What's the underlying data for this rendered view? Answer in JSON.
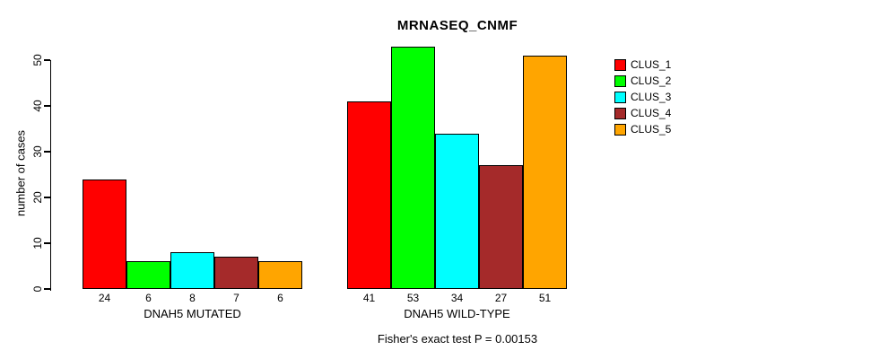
{
  "chart_data": {
    "type": "bar",
    "title": "MRNASEQ_CNMF",
    "ylabel": "number of cases",
    "xlabel": "",
    "ylim": [
      0,
      50
    ],
    "yticks": [
      0,
      10,
      20,
      30,
      40,
      50
    ],
    "grid": false,
    "legend_position": "right",
    "footer": "Fisher's exact test P = 0.00153",
    "categories": [
      "DNAH5 MUTATED",
      "DNAH5 WILD-TYPE"
    ],
    "series": [
      {
        "name": "CLUS_1",
        "color": "#FF0000",
        "values": [
          24,
          41
        ]
      },
      {
        "name": "CLUS_2",
        "color": "#00FF00",
        "values": [
          6,
          53
        ]
      },
      {
        "name": "CLUS_3",
        "color": "#00FFFF",
        "values": [
          8,
          34
        ]
      },
      {
        "name": "CLUS_4",
        "color": "#A52A2A",
        "values": [
          7,
          27
        ]
      },
      {
        "name": "CLUS_5",
        "color": "#FFA500",
        "values": [
          6,
          51
        ]
      }
    ],
    "bar_border_color": "#000000",
    "background_color": "#FFFFFF"
  }
}
